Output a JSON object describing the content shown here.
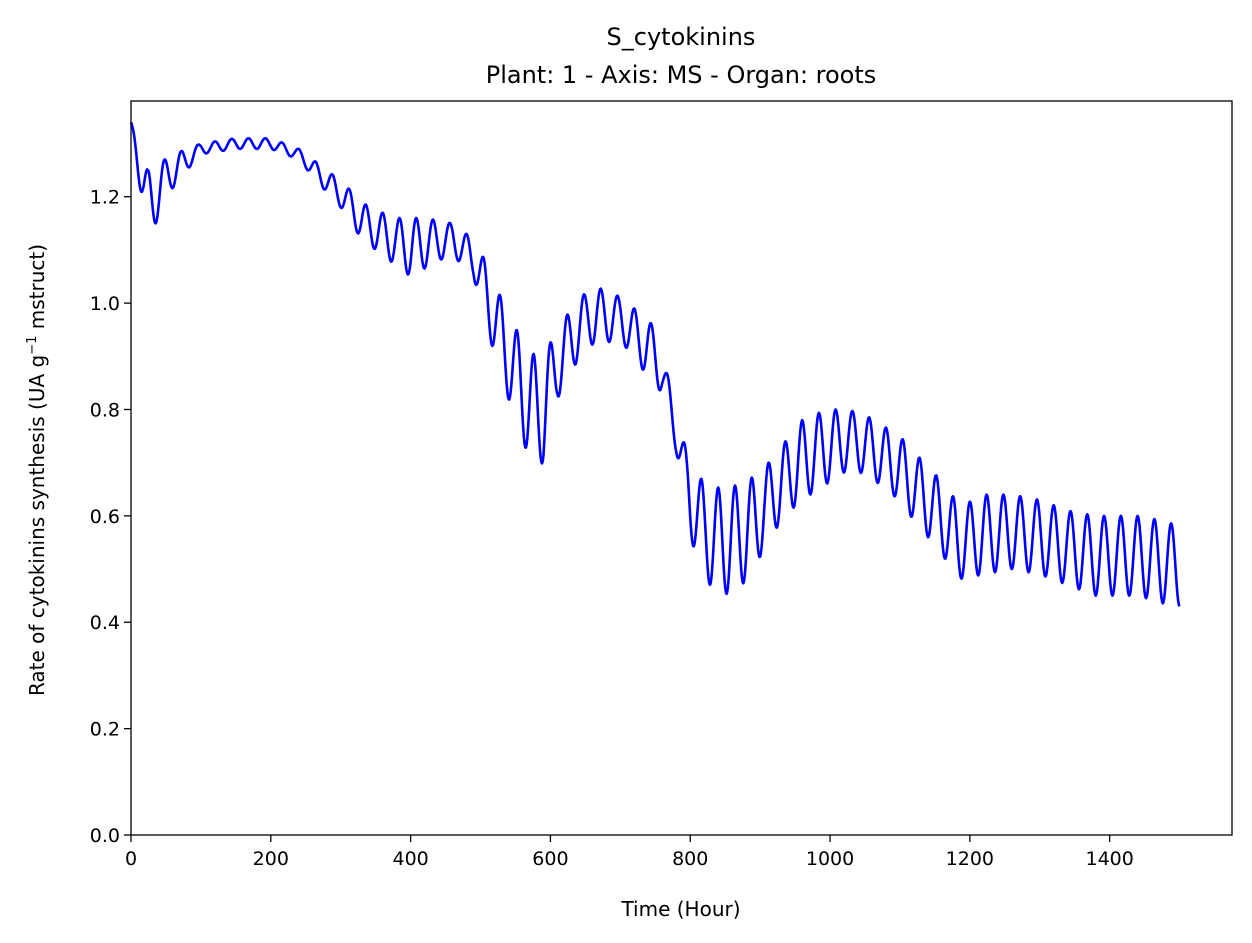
{
  "chart_data": {
    "type": "line",
    "title": "S_cytokinins",
    "subtitle": "Plant: 1 - Axis: MS - Organ: roots",
    "xlabel": "Time (Hour)",
    "ylabel": "Rate of cytokinins synthesis (UA g",
    "ylabel_sup": "−1",
    "ylabel_suffix": " mstruct)",
    "xlim": [
      0,
      1575
    ],
    "ylim": [
      0,
      1.38
    ],
    "xticks": [
      0,
      200,
      400,
      600,
      800,
      1000,
      1200,
      1400
    ],
    "xtick_labels": [
      "0",
      "200",
      "400",
      "600",
      "800",
      "1000",
      "1200",
      "1400"
    ],
    "yticks": [
      0,
      0.2,
      0.4,
      0.6,
      0.8,
      1.0,
      1.2
    ],
    "ytick_labels": [
      "0.0",
      "0.2",
      "0.4",
      "0.6",
      "0.8",
      "1.0",
      "1.2"
    ],
    "grid": false,
    "series": [
      {
        "color": "#0000ff",
        "period_hours": 24,
        "x": [
          0,
          1500
        ],
        "upper_envelope": [
          [
            0,
            1.34
          ],
          [
            24,
            1.25
          ],
          [
            60,
            1.28
          ],
          [
            100,
            1.3
          ],
          [
            150,
            1.31
          ],
          [
            200,
            1.31
          ],
          [
            240,
            1.29
          ],
          [
            270,
            1.26
          ],
          [
            300,
            1.23
          ],
          [
            340,
            1.18
          ],
          [
            380,
            1.16
          ],
          [
            420,
            1.16
          ],
          [
            460,
            1.15
          ],
          [
            490,
            1.12
          ],
          [
            515,
            1.06
          ],
          [
            535,
            0.99
          ],
          [
            560,
            0.93
          ],
          [
            585,
            0.89
          ],
          [
            610,
            0.95
          ],
          [
            640,
            1.01
          ],
          [
            665,
            1.03
          ],
          [
            690,
            1.02
          ],
          [
            710,
            1.0
          ],
          [
            740,
            0.97
          ],
          [
            755,
            0.94
          ],
          [
            775,
            0.82
          ],
          [
            795,
            0.72
          ],
          [
            820,
            0.66
          ],
          [
            850,
            0.65
          ],
          [
            870,
            0.66
          ],
          [
            900,
            0.68
          ],
          [
            930,
            0.73
          ],
          [
            960,
            0.78
          ],
          [
            995,
            0.8
          ],
          [
            1025,
            0.8
          ],
          [
            1050,
            0.79
          ],
          [
            1075,
            0.77
          ],
          [
            1100,
            0.75
          ],
          [
            1120,
            0.72
          ],
          [
            1150,
            0.68
          ],
          [
            1165,
            0.65
          ],
          [
            1190,
            0.62
          ],
          [
            1220,
            0.64
          ],
          [
            1260,
            0.64
          ],
          [
            1300,
            0.63
          ],
          [
            1340,
            0.61
          ],
          [
            1380,
            0.6
          ],
          [
            1440,
            0.6
          ],
          [
            1480,
            0.59
          ],
          [
            1500,
            0.58
          ]
        ],
        "lower_envelope": [
          [
            0,
            1.34
          ],
          [
            24,
            1.11
          ],
          [
            50,
            1.2
          ],
          [
            80,
            1.25
          ],
          [
            100,
            1.28
          ],
          [
            150,
            1.29
          ],
          [
            200,
            1.29
          ],
          [
            240,
            1.27
          ],
          [
            265,
            1.23
          ],
          [
            300,
            1.18
          ],
          [
            330,
            1.12
          ],
          [
            350,
            1.1
          ],
          [
            380,
            1.07
          ],
          [
            400,
            1.05
          ],
          [
            440,
            1.08
          ],
          [
            460,
            1.09
          ],
          [
            490,
            1.05
          ],
          [
            505,
            0.97
          ],
          [
            530,
            0.86
          ],
          [
            555,
            0.76
          ],
          [
            575,
            0.69
          ],
          [
            590,
            0.7
          ],
          [
            610,
            0.82
          ],
          [
            630,
            0.87
          ],
          [
            650,
            0.92
          ],
          [
            700,
            0.93
          ],
          [
            735,
            0.87
          ],
          [
            760,
            0.83
          ],
          [
            780,
            0.72
          ],
          [
            800,
            0.56
          ],
          [
            820,
            0.48
          ],
          [
            845,
            0.45
          ],
          [
            865,
            0.46
          ],
          [
            890,
            0.49
          ],
          [
            905,
            0.54
          ],
          [
            935,
            0.6
          ],
          [
            960,
            0.63
          ],
          [
            995,
            0.66
          ],
          [
            1030,
            0.69
          ],
          [
            1060,
            0.67
          ],
          [
            1090,
            0.64
          ],
          [
            1115,
            0.6
          ],
          [
            1140,
            0.56
          ],
          [
            1160,
            0.53
          ],
          [
            1180,
            0.48
          ],
          [
            1220,
            0.49
          ],
          [
            1260,
            0.5
          ],
          [
            1300,
            0.49
          ],
          [
            1340,
            0.47
          ],
          [
            1380,
            0.45
          ],
          [
            1440,
            0.45
          ],
          [
            1490,
            0.43
          ],
          [
            1500,
            0.43
          ]
        ]
      }
    ]
  }
}
